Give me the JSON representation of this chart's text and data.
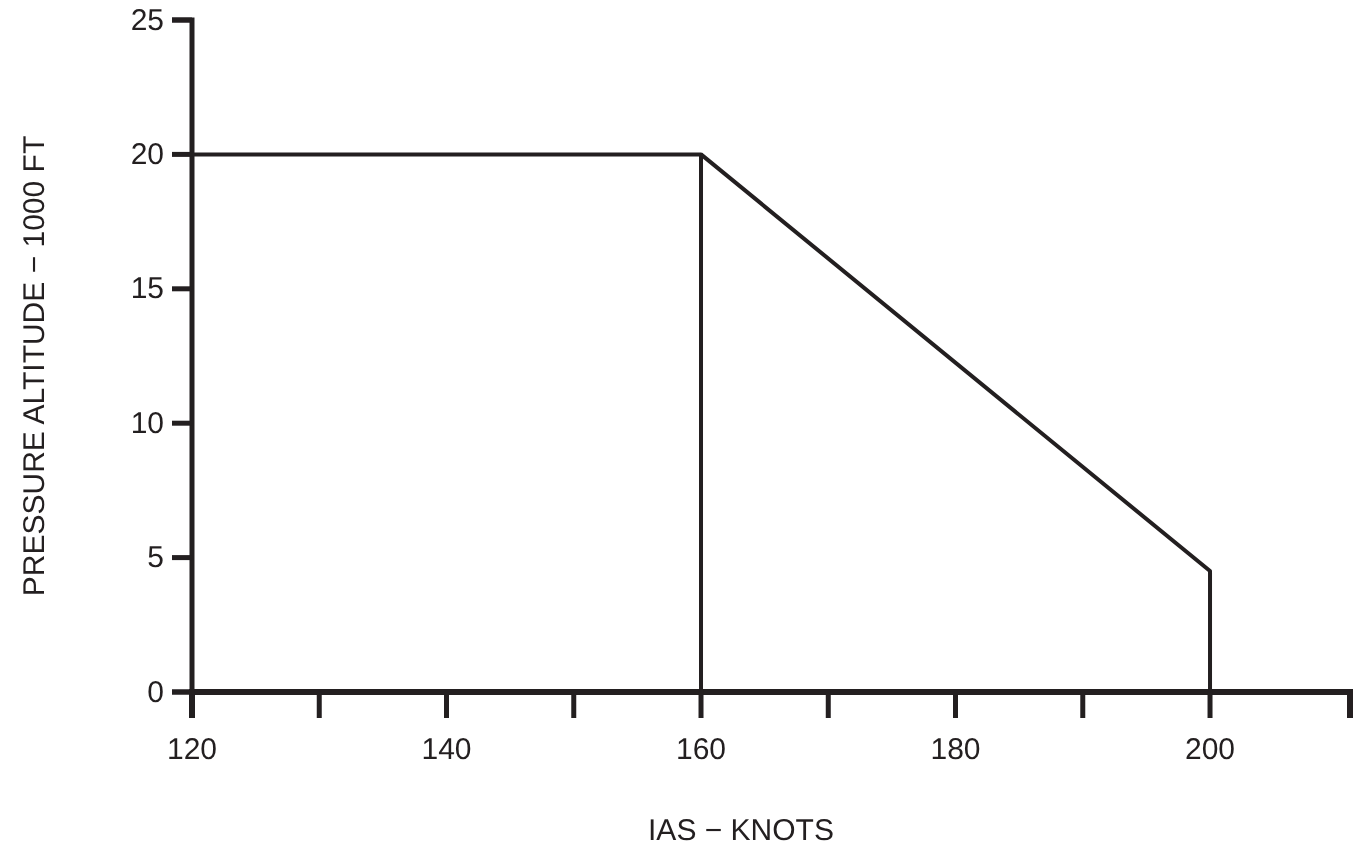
{
  "chart_data": {
    "type": "line",
    "xlabel": "IAS − KNOTS",
    "ylabel": "PRESSURE ALTITUDE − 1000 FT",
    "xlim": [
      120,
      211
    ],
    "xticks": [
      120,
      {
        "value": 130,
        "label": null
      },
      140,
      {
        "value": 150,
        "label": null
      },
      160,
      {
        "value": 170,
        "label": null
      },
      180,
      {
        "value": 190,
        "label": null
      },
      200
    ],
    "ylim": [
      0,
      25
    ],
    "yticks": [
      0,
      5,
      10,
      15,
      20,
      25
    ],
    "grid": false,
    "marker": "none",
    "line_style": "solid",
    "series": [
      {
        "color": "#231f20",
        "x": [
          120,
          160,
          160
        ],
        "values": [
          20,
          20,
          0
        ]
      },
      {
        "color": "#231f20",
        "x": [
          160,
          200,
          200
        ],
        "values": [
          20,
          4.5,
          0
        ]
      }
    ]
  }
}
